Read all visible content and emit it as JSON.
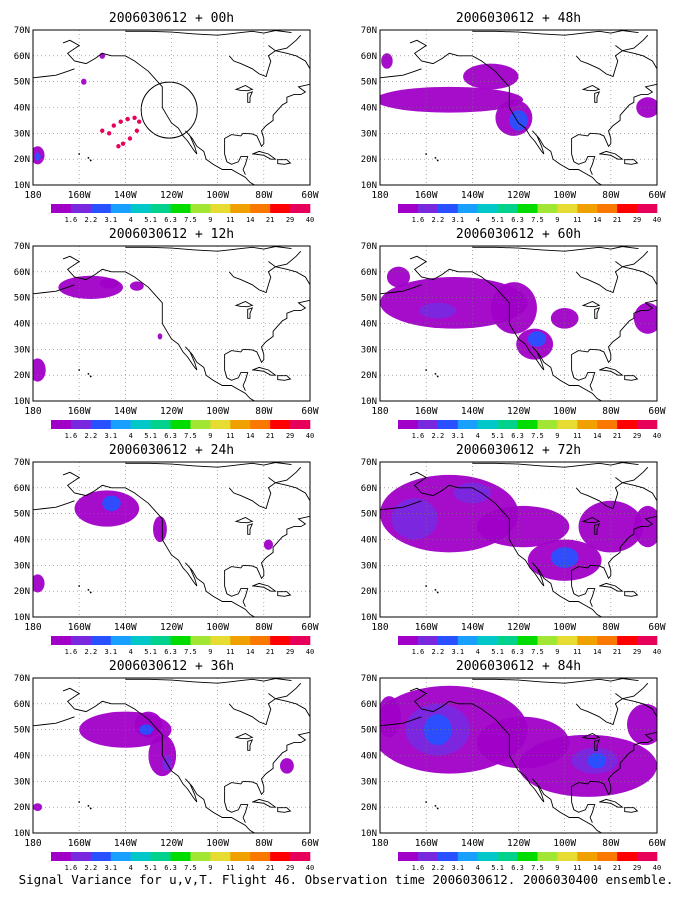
{
  "caption": "Signal Variance for u,v,T. Flight 46. Observation time 2006030612. 2006030400 ensemble.",
  "lat_labels": [
    "70N",
    "60N",
    "50N",
    "40N",
    "30N",
    "20N",
    "10N"
  ],
  "lon_labels": [
    "180",
    "160W",
    "140W",
    "120W",
    "100W",
    "80W",
    "60W"
  ],
  "colorbar": {
    "labels": [
      "1.6",
      "2.2",
      "3.1",
      "4",
      "5.1",
      "6.3",
      "7.5",
      "9",
      "11",
      "14",
      "21",
      "29",
      "40"
    ],
    "colors": [
      "#a000c8",
      "#7a28e0",
      "#2850ff",
      "#19a0ff",
      "#00c8c8",
      "#00d28c",
      "#00dc00",
      "#a0e632",
      "#e6dc32",
      "#f0a000",
      "#fa7800",
      "#ff0000",
      "#e6005a"
    ]
  },
  "panels": [
    {
      "title": "2006030612 + 00h",
      "forecast_hour": 0
    },
    {
      "title": "2006030612 + 48h",
      "forecast_hour": 48
    },
    {
      "title": "2006030612 + 12h",
      "forecast_hour": 12
    },
    {
      "title": "2006030612 + 60h",
      "forecast_hour": 60
    },
    {
      "title": "2006030612 + 24h",
      "forecast_hour": 24
    },
    {
      "title": "2006030612 + 72h",
      "forecast_hour": 72
    },
    {
      "title": "2006030612 + 36h",
      "forecast_hour": 36
    },
    {
      "title": "2006030612 + 84h",
      "forecast_hour": 84
    }
  ]
}
